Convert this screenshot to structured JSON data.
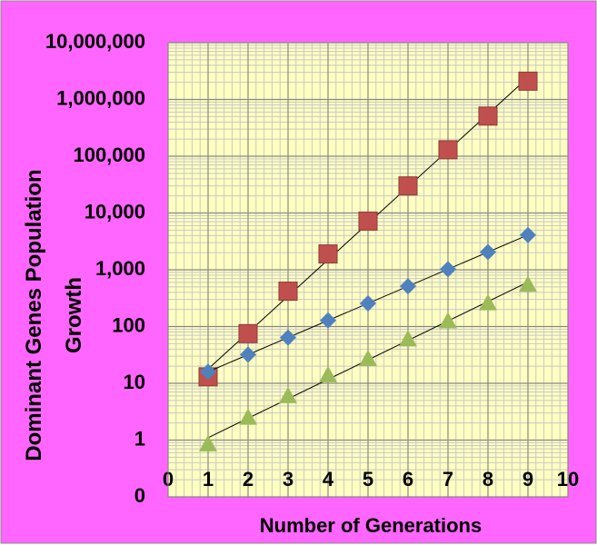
{
  "chart_data": {
    "type": "scatter",
    "x_label": "Number of Generations",
    "y_label": "Dominant Genes Population Growth",
    "x": [
      1,
      2,
      3,
      4,
      5,
      6,
      7,
      8,
      9
    ],
    "series": [
      {
        "color": "#c0504d",
        "marker": "square",
        "values": [
          13,
          75,
          420,
          1900,
          7200,
          30000,
          130000,
          510000,
          2100000
        ]
      },
      {
        "color": "#4f81bd",
        "marker": "diamond",
        "values": [
          16,
          32,
          64,
          128,
          256,
          512,
          1024,
          2048,
          4096
        ]
      },
      {
        "color": "#9bbb59",
        "marker": "triangle",
        "values": [
          0.85,
          2.5,
          6,
          14,
          27,
          60,
          125,
          260,
          550
        ]
      }
    ],
    "xlim": [
      0,
      10
    ],
    "xticks": [
      0,
      1,
      2,
      3,
      4,
      5,
      6,
      7,
      8,
      9,
      10
    ],
    "ylim": [
      0.1,
      10000000
    ],
    "yticks": [
      {
        "value": 0.1,
        "label": "0"
      },
      1,
      10,
      100,
      {
        "value": 1000,
        "label": "1,000"
      },
      {
        "value": 10000,
        "label": "10,000"
      },
      {
        "value": 100000,
        "label": "100,000"
      },
      {
        "value": 1000000,
        "label": "1,000,000"
      },
      {
        "value": 10000000,
        "label": "10,000,000"
      }
    ],
    "y_log": true,
    "grid": true,
    "minor_grid": true,
    "trendline": "exponential"
  }
}
